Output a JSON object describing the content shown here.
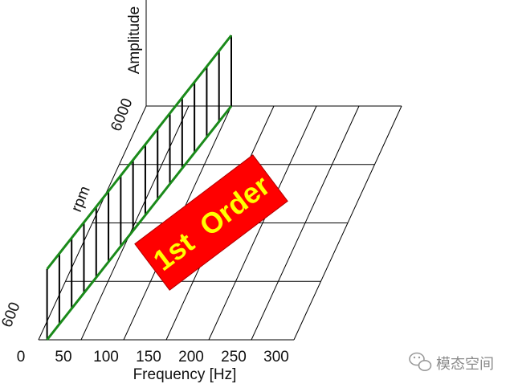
{
  "chart_data": {
    "type": "waterfall",
    "x_axis": {
      "label": "Frequency [Hz]",
      "ticks": [
        "0",
        "50",
        "100",
        "150",
        "200",
        "250",
        "300"
      ],
      "range": [
        0,
        300
      ]
    },
    "rpm_axis": {
      "label": "rpm",
      "ticks": [
        "600",
        "6000"
      ],
      "range": [
        600,
        6000
      ]
    },
    "amplitude_axis": {
      "label": "Amplitude"
    },
    "grid": true,
    "order_label": "1st  Order",
    "colors": {
      "order_line": "#1a8a1a",
      "stems": "#000000",
      "grid": "#000000",
      "label_box": "#ff0000",
      "label_text": "#ffff00"
    },
    "series": [
      {
        "order": 1,
        "rpm": [
          600,
          960,
          1320,
          1680,
          2040,
          2400,
          2760,
          3120,
          3480,
          3840,
          4200,
          4560,
          4920,
          5280,
          5640,
          6000
        ],
        "frequency_hz": [
          10,
          16,
          22,
          28,
          34,
          40,
          46,
          52,
          58,
          64,
          70,
          76,
          82,
          88,
          94,
          100
        ],
        "amplitude": [
          1.0,
          1.0,
          1.0,
          1.0,
          1.0,
          1.0,
          1.0,
          1.0,
          1.0,
          1.0,
          1.0,
          1.0,
          1.0,
          1.0,
          1.0,
          1.0
        ]
      }
    ]
  },
  "watermark": {
    "icon": "wechat-icon",
    "text": "模态空间"
  }
}
